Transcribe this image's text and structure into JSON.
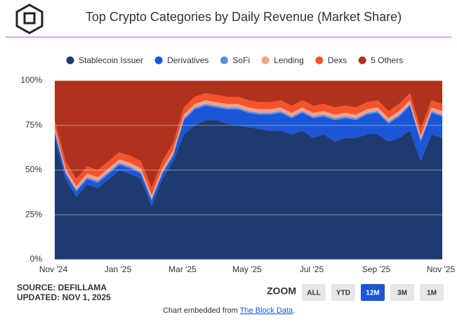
{
  "chart_data": {
    "type": "stacked-area",
    "title": "Top Crypto Categories by Daily Revenue (Market Share)",
    "categories": [
      "Nov '24",
      null,
      null,
      null,
      null,
      null,
      "Jan '25",
      null,
      null,
      null,
      null,
      null,
      "Mar '25",
      null,
      null,
      null,
      null,
      null,
      "May '25",
      null,
      null,
      null,
      null,
      null,
      "Jul '25",
      null,
      null,
      null,
      null,
      null,
      "Sep '25",
      null,
      null,
      null,
      null,
      null,
      "Nov '25"
    ],
    "series": [
      {
        "name": "Stablecoin Issuer",
        "color": "#1f3a6e",
        "values": [
          68,
          45,
          35,
          42,
          40,
          45,
          50,
          48,
          45,
          30,
          45,
          55,
          70,
          75,
          78,
          78,
          76,
          75,
          74,
          73,
          72,
          72,
          70,
          72,
          68,
          70,
          66,
          68,
          68,
          70,
          70,
          66,
          68,
          72,
          55,
          70,
          68
        ]
      },
      {
        "name": "Derivatives",
        "color": "#1a56d6",
        "values": [
          3,
          3,
          3,
          3,
          3,
          3,
          3,
          3,
          3,
          3,
          3,
          3,
          8,
          9,
          8,
          7,
          8,
          9,
          8,
          8,
          9,
          10,
          9,
          10,
          11,
          10,
          12,
          11,
          10,
          11,
          12,
          10,
          12,
          14,
          11,
          12,
          12
        ]
      },
      {
        "name": "SoFi",
        "color": "#5b8ee8",
        "values": [
          1,
          1,
          1,
          1,
          1,
          1,
          1,
          1,
          1,
          1,
          1,
          1,
          1,
          1,
          1,
          1,
          1,
          1,
          1,
          1,
          1,
          1,
          1,
          1,
          1,
          1,
          1,
          1,
          1,
          1,
          1,
          1,
          1,
          1,
          1,
          1,
          1
        ]
      },
      {
        "name": "Lending",
        "color": "#f4a08a",
        "values": [
          2,
          2,
          2,
          2,
          2,
          2,
          2,
          2,
          2,
          2,
          2,
          2,
          2,
          2,
          2,
          2,
          2,
          2,
          2,
          2,
          2,
          2,
          2,
          2,
          2,
          2,
          2,
          2,
          2,
          2,
          2,
          2,
          2,
          2,
          2,
          2,
          2
        ]
      },
      {
        "name": "Dexs",
        "color": "#f4532c",
        "values": [
          4,
          4,
          4,
          4,
          4,
          4,
          4,
          4,
          4,
          4,
          4,
          4,
          4,
          4,
          4,
          4,
          4,
          4,
          4,
          4,
          4,
          4,
          4,
          4,
          4,
          4,
          4,
          4,
          4,
          4,
          4,
          4,
          4,
          4,
          4,
          4,
          4
        ]
      },
      {
        "name": "5 Others",
        "color": "#b1321c",
        "values": [
          22,
          45,
          55,
          48,
          50,
          45,
          40,
          42,
          45,
          60,
          45,
          35,
          15,
          9,
          7,
          8,
          9,
          9,
          11,
          12,
          12,
          11,
          14,
          11,
          14,
          13,
          15,
          14,
          15,
          12,
          11,
          17,
          13,
          7,
          27,
          11,
          13
        ]
      }
    ],
    "ylim": [
      0,
      100
    ],
    "yticks": [
      {
        "value": 0,
        "label": "0%"
      },
      {
        "value": 25,
        "label": "25%"
      },
      {
        "value": 50,
        "label": "50%"
      },
      {
        "value": 75,
        "label": "75%"
      },
      {
        "value": 100,
        "label": "100%"
      }
    ],
    "grid": true
  },
  "source": "SOURCE: DEFILLAMA",
  "updated": "UPDATED: NOV 1, 2025",
  "zoom_label": "ZOOM",
  "zoom_buttons": [
    {
      "label": "ALL",
      "active": false
    },
    {
      "label": "YTD",
      "active": false
    },
    {
      "label": "12M",
      "active": true
    },
    {
      "label": "3M",
      "active": false
    },
    {
      "label": "1M",
      "active": false
    }
  ],
  "footer": {
    "text": "Chart embedded from ",
    "link": "The Block Data",
    "end": "."
  }
}
